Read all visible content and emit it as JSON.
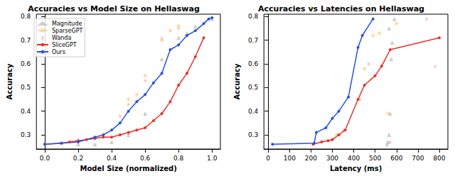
{
  "chart_data": [
    {
      "type": "line",
      "title": "Accuracies vs Model Size on Hellaswag",
      "x_label": "Model Size (normalized)",
      "y_label": "Accuracy",
      "xlim": [
        -0.05,
        1.05
      ],
      "xticks": [
        {
          "value": 0,
          "label": "0.0"
        },
        {
          "value": 0.2,
          "label": "0.2"
        },
        {
          "value": 0.4,
          "label": "0.4"
        },
        {
          "value": 0.6,
          "label": "0.6"
        },
        {
          "value": 0.8,
          "label": "0.8"
        },
        {
          "value": 1,
          "label": "1.0"
        }
      ],
      "ylim": [
        0.24,
        0.81
      ],
      "yticks": [
        0.3,
        0.4,
        0.5,
        0.6,
        0.7,
        0.8
      ],
      "legend": "upper left",
      "series": [
        {
          "name": "Magnitude",
          "type": "scatter",
          "marker": "triangle",
          "color": "#a9b0a9",
          "x": [
            0.2,
            0.3,
            0.4,
            0.5,
            0.6,
            0.7,
            0.8,
            0.85,
            0.9,
            1.0
          ],
          "values": [
            0.26,
            0.26,
            0.27,
            0.3,
            0.39,
            0.62,
            0.71,
            0.73,
            0.76,
            0.79
          ]
        },
        {
          "name": "SparseGPT",
          "type": "scatter",
          "marker": "diamond",
          "color": "#f7c46c",
          "x": [
            0.5,
            0.55,
            0.6,
            0.7,
            0.75,
            0.8
          ],
          "values": [
            0.45,
            0.47,
            0.55,
            0.7,
            0.74,
            0.76
          ]
        },
        {
          "name": "Wanda",
          "type": "scatter",
          "marker": "star",
          "color": "#f29a9a",
          "x": [
            0.45,
            0.5,
            0.6,
            0.7,
            0.8
          ],
          "values": [
            0.38,
            0.43,
            0.53,
            0.71,
            0.75
          ]
        },
        {
          "name": "SliceGPT",
          "type": "line",
          "marker": "circle",
          "color": "#e8302a",
          "x": [
            0,
            0.1,
            0.15,
            0.2,
            0.25,
            0.3,
            0.35,
            0.4,
            0.45,
            0.5,
            0.55,
            0.6,
            0.65,
            0.7,
            0.75,
            0.8,
            0.85,
            0.9,
            0.95
          ],
          "values": [
            0.26,
            0.265,
            0.27,
            0.275,
            0.28,
            0.285,
            0.29,
            0.29,
            0.3,
            0.31,
            0.32,
            0.33,
            0.36,
            0.39,
            0.44,
            0.51,
            0.56,
            0.63,
            0.71
          ]
        },
        {
          "name": "Ours",
          "type": "line",
          "marker": "circle",
          "color": "#2650e8",
          "x": [
            0,
            0.1,
            0.2,
            0.3,
            0.35,
            0.4,
            0.45,
            0.5,
            0.55,
            0.6,
            0.65,
            0.7,
            0.75,
            0.8,
            0.85,
            0.9,
            0.95,
            0.98,
            1.0
          ],
          "values": [
            0.26,
            0.265,
            0.27,
            0.29,
            0.3,
            0.32,
            0.35,
            0.4,
            0.44,
            0.47,
            0.52,
            0.56,
            0.66,
            0.68,
            0.72,
            0.74,
            0.77,
            0.79,
            0.795
          ]
        }
      ]
    },
    {
      "type": "line",
      "title": "Accuracies vs Latencies on Hellaswag",
      "x_label": "Latency (ms)",
      "y_label": "Accuracy",
      "xlim": [
        -20,
        840
      ],
      "xticks": [
        0,
        100,
        200,
        300,
        400,
        500,
        600,
        700,
        800
      ],
      "ylim": [
        0.24,
        0.81
      ],
      "yticks": [
        0.3,
        0.4,
        0.5,
        0.6,
        0.7,
        0.8
      ],
      "series": [
        {
          "name": "Magnitude",
          "type": "scatter",
          "marker": "triangle",
          "color": "#a9b0a9",
          "x": [
            555,
            560,
            565,
            570,
            575,
            580,
            565,
            590
          ],
          "values": [
            0.26,
            0.27,
            0.3,
            0.39,
            0.62,
            0.69,
            0.75,
            0.79
          ]
        },
        {
          "name": "SparseGPT",
          "type": "scatter",
          "marker": "diamond",
          "color": "#f7c46c",
          "x": [
            320,
            450,
            490,
            520,
            600,
            560
          ],
          "values": [
            0.3,
            0.58,
            0.72,
            0.73,
            0.77,
            0.39
          ]
        },
        {
          "name": "Wanda",
          "type": "scatter",
          "marker": "star",
          "color": "#f29a9a",
          "x": [
            300,
            350,
            430,
            470,
            740,
            780,
            570
          ],
          "values": [
            0.28,
            0.32,
            0.45,
            0.6,
            0.79,
            0.59,
            0.27
          ]
        },
        {
          "name": "SliceGPT",
          "type": "line",
          "marker": "circle",
          "color": "#e8302a",
          "x": [
            210,
            250,
            280,
            300,
            330,
            360,
            420,
            450,
            500,
            530,
            570,
            800
          ],
          "values": [
            0.26,
            0.27,
            0.275,
            0.28,
            0.3,
            0.32,
            0.45,
            0.51,
            0.55,
            0.59,
            0.66,
            0.71
          ]
        },
        {
          "name": "Ours",
          "type": "line",
          "marker": "circle",
          "color": "#2650e8",
          "x": [
            20,
            215,
            225,
            270,
            300,
            330,
            375,
            420,
            440,
            490
          ],
          "values": [
            0.26,
            0.265,
            0.31,
            0.33,
            0.37,
            0.4,
            0.46,
            0.67,
            0.72,
            0.79
          ]
        }
      ]
    }
  ]
}
